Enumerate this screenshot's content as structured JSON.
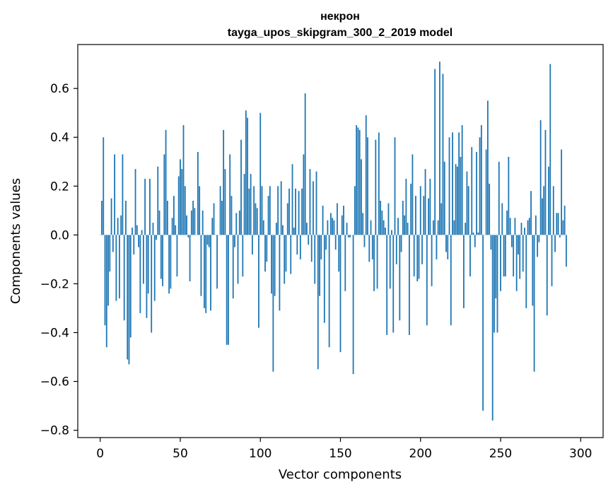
{
  "chart_data": {
    "type": "bar",
    "title_line1": "некрон",
    "title_line2": "tayga_upos_skipgram_300_2_2019 model",
    "xlabel": "Vector components",
    "ylabel": "Components values",
    "xlim": [
      -14,
      314
    ],
    "ylim": [
      -0.83,
      0.78
    ],
    "xticks": [
      0,
      50,
      100,
      150,
      200,
      250,
      300
    ],
    "xtick_labels": [
      "0",
      "50",
      "100",
      "150",
      "200",
      "250",
      "300"
    ],
    "yticks": [
      -0.8,
      -0.6,
      -0.4,
      -0.2,
      0.0,
      0.2,
      0.4,
      0.6
    ],
    "ytick_labels": [
      "−0.8",
      "−0.6",
      "−0.4",
      "−0.2",
      "0.0",
      "0.2",
      "0.4",
      "0.6"
    ],
    "bar_color": "#1f77b4",
    "values": [
      0.0,
      0.14,
      0.4,
      -0.37,
      -0.46,
      -0.29,
      -0.15,
      0.15,
      -0.07,
      0.33,
      -0.27,
      0.07,
      -0.26,
      0.08,
      0.33,
      -0.35,
      0.14,
      -0.51,
      -0.53,
      -0.42,
      0.03,
      -0.08,
      0.27,
      0.04,
      -0.05,
      -0.32,
      0.02,
      -0.2,
      0.23,
      -0.34,
      -0.24,
      0.23,
      -0.4,
      0.05,
      -0.27,
      -0.02,
      0.28,
      0.1,
      -0.18,
      -0.21,
      0.33,
      0.43,
      0.14,
      -0.24,
      -0.22,
      0.07,
      0.16,
      0.04,
      -0.17,
      0.24,
      0.31,
      0.27,
      0.45,
      0.2,
      0.08,
      -0.01,
      -0.19,
      0.1,
      0.14,
      0.11,
      0.0,
      0.34,
      0.2,
      -0.25,
      0.1,
      -0.3,
      -0.32,
      -0.04,
      -0.05,
      -0.31,
      0.07,
      0.13,
      0.0,
      -0.22,
      0.0,
      0.2,
      0.14,
      0.43,
      0.27,
      -0.45,
      -0.45,
      0.33,
      0.16,
      -0.26,
      -0.05,
      0.09,
      -0.2,
      0.1,
      0.39,
      -0.17,
      0.25,
      0.51,
      0.48,
      0.19,
      0.25,
      -0.08,
      0.2,
      0.13,
      0.11,
      -0.38,
      0.5,
      0.2,
      0.06,
      -0.15,
      -0.11,
      0.16,
      0.2,
      -0.24,
      -0.56,
      -0.25,
      0.05,
      0.2,
      -0.31,
      0.22,
      0.04,
      -0.2,
      -0.15,
      0.13,
      0.19,
      -0.16,
      0.29,
      0.03,
      0.19,
      -0.08,
      0.18,
      -0.1,
      0.19,
      0.33,
      0.58,
      0.05,
      -0.04,
      0.27,
      -0.11,
      0.22,
      -0.2,
      0.26,
      -0.55,
      -0.25,
      -0.1,
      0.12,
      -0.36,
      -0.06,
      0.06,
      -0.46,
      0.09,
      0.07,
      0.06,
      -0.06,
      0.13,
      -0.15,
      -0.48,
      0.08,
      0.12,
      -0.23,
      0.05,
      -0.01,
      -0.01,
      0.0,
      -0.57,
      0.2,
      0.45,
      0.44,
      0.43,
      0.31,
      0.09,
      -0.05,
      0.49,
      0.4,
      -0.11,
      0.06,
      -0.1,
      -0.23,
      0.39,
      -0.22,
      0.42,
      0.14,
      0.1,
      0.06,
      0.03,
      -0.41,
      0.13,
      -0.22,
      0.02,
      -0.4,
      0.4,
      -0.12,
      0.07,
      -0.35,
      -0.07,
      0.14,
      0.08,
      0.23,
      0.05,
      -0.41,
      0.21,
      0.33,
      -0.17,
      0.16,
      -0.19,
      -0.18,
      0.2,
      -0.12,
      0.16,
      0.27,
      -0.37,
      0.15,
      0.23,
      -0.21,
      0.06,
      0.68,
      -0.1,
      0.06,
      0.71,
      0.13,
      0.66,
      0.3,
      -0.07,
      -0.1,
      0.4,
      -0.37,
      0.42,
      0.06,
      0.29,
      0.28,
      0.42,
      0.32,
      0.45,
      -0.3,
      0.05,
      0.26,
      0.2,
      -0.17,
      0.36,
      0.01,
      -0.05,
      0.34,
      0.01,
      0.4,
      0.45,
      -0.72,
      0.0,
      0.35,
      0.55,
      0.21,
      -0.06,
      -0.76,
      -0.4,
      -0.26,
      -0.4,
      0.3,
      -0.23,
      0.13,
      -0.17,
      -0.17,
      0.1,
      0.32,
      0.07,
      -0.05,
      -0.17,
      0.07,
      -0.23,
      -0.08,
      -0.18,
      0.05,
      -0.15,
      0.03,
      -0.3,
      0.06,
      0.07,
      0.18,
      -0.29,
      -0.56,
      0.08,
      -0.09,
      -0.03,
      0.47,
      0.15,
      0.2,
      0.43,
      -0.33,
      0.28,
      0.7,
      -0.21,
      0.2,
      -0.07,
      0.09,
      0.09,
      -0.01,
      0.35,
      0.06,
      0.12,
      -0.13
    ]
  }
}
